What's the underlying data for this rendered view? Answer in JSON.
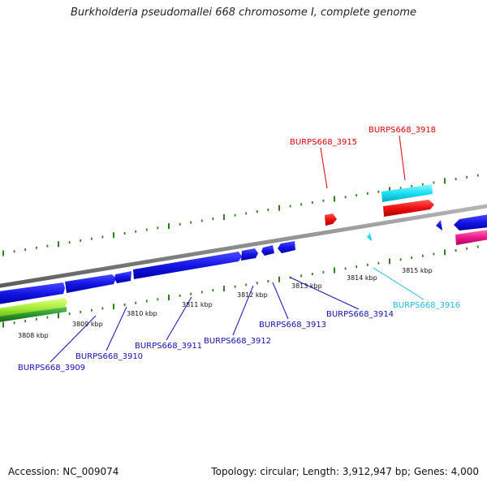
{
  "title": "Burkholderia pseudomallei 668 chromosome I, complete genome",
  "footer": {
    "accession": "Accession: NC_009074",
    "summary": "Topology: circular; Length: 3,912,947 bp; Genes: 4,000"
  },
  "colors": {
    "backbone": "#8a8a8a",
    "forward_label": "#dd0000",
    "reverse_label": "#1010b0",
    "highlight_label": "#22b8e6",
    "tick": "#2f7f1f"
  },
  "scale_labels": [
    "3808 kbp",
    "3809 kbp",
    "3810 kbp",
    "3811 kbp",
    "3812 kbp",
    "3813 kbp",
    "3814 kbp",
    "3815 kbp"
  ],
  "labels": [
    {
      "text": "BURPS668_3909",
      "color_key": "reverse_label"
    },
    {
      "text": "BURPS668_3910",
      "color_key": "reverse_label"
    },
    {
      "text": "BURPS668_3911",
      "color_key": "reverse_label"
    },
    {
      "text": "BURPS668_3912",
      "color_key": "reverse_label"
    },
    {
      "text": "BURPS668_3913",
      "color_key": "reverse_label"
    },
    {
      "text": "BURPS668_3914",
      "color_key": "reverse_label"
    },
    {
      "text": "BURPS668_3915",
      "color_key": "forward_label"
    },
    {
      "text": "BURPS668_3916",
      "color_key": "highlight_label"
    },
    {
      "text": "BURPS668_3918",
      "color_key": "forward_label"
    }
  ]
}
